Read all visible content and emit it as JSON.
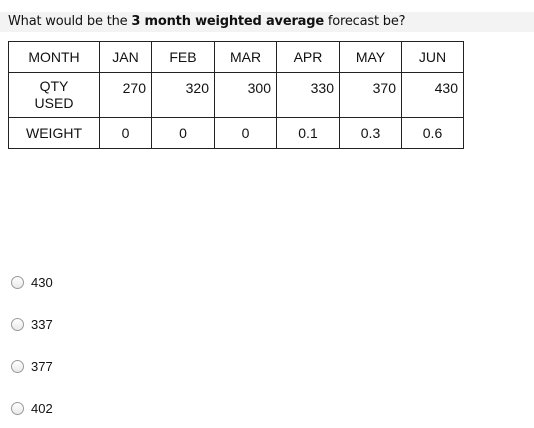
{
  "question": {
    "prefix": "What would be the ",
    "bold1": "3 month weighted average",
    "suffix": " forecast be?"
  },
  "table": {
    "header": [
      "MONTH",
      "JAN",
      "FEB",
      "MAR",
      "APR",
      "MAY",
      "JUN"
    ],
    "qty_label_line1": "QTY",
    "qty_label_line2": "USED",
    "qty_values": [
      "270",
      "320",
      "300",
      "330",
      "370",
      "430"
    ],
    "weight_label": "WEIGHT",
    "weight_values": [
      "0",
      "0",
      "0",
      "0.1",
      "0.3",
      "0.6"
    ]
  },
  "options": [
    {
      "label": "430"
    },
    {
      "label": "337"
    },
    {
      "label": "377"
    },
    {
      "label": "402"
    }
  ]
}
